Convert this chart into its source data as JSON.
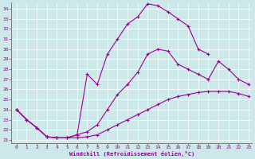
{
  "xlabel": "Windchill (Refroidissement éolien,°C)",
  "bg_color": "#cce8e8",
  "line_color": "#990099",
  "xlim": [
    -0.5,
    23.3
  ],
  "ylim": [
    20.7,
    34.6
  ],
  "xticks": [
    0,
    1,
    2,
    3,
    4,
    5,
    6,
    7,
    8,
    9,
    10,
    11,
    12,
    13,
    14,
    15,
    16,
    17,
    18,
    19,
    20,
    21,
    22,
    23
  ],
  "yticks": [
    21,
    22,
    23,
    24,
    25,
    26,
    27,
    28,
    29,
    30,
    31,
    32,
    33,
    34
  ],
  "curve1_x": [
    0,
    1,
    2,
    3,
    4,
    5,
    6,
    7,
    8,
    9,
    10,
    11,
    12,
    13,
    14,
    15,
    16,
    17,
    18,
    19,
    20,
    21,
    22,
    23
  ],
  "curve1_y": [
    24.0,
    23.0,
    22.2,
    21.3,
    21.2,
    21.2,
    21.2,
    21.3,
    21.5,
    22.0,
    22.5,
    23.0,
    23.5,
    24.0,
    24.5,
    25.0,
    25.3,
    25.5,
    25.7,
    25.8,
    25.8,
    25.8,
    25.6,
    25.3
  ],
  "curve2_x": [
    0,
    1,
    2,
    3,
    4,
    5,
    6,
    7,
    8,
    9,
    10,
    11,
    12,
    13,
    14,
    15,
    16,
    17,
    18,
    19,
    20,
    21,
    22,
    23
  ],
  "curve2_y": [
    24.0,
    23.0,
    22.2,
    21.3,
    21.2,
    21.2,
    21.5,
    27.5,
    26.5,
    29.5,
    31.0,
    32.5,
    33.2,
    34.5,
    34.3,
    33.7,
    33.0,
    32.3,
    30.0,
    29.5,
    null,
    null,
    null,
    null
  ],
  "curve3_x": [
    0,
    1,
    2,
    3,
    4,
    5,
    6,
    7,
    8,
    9,
    10,
    11,
    12,
    13,
    14,
    15,
    16,
    17,
    18,
    19,
    20,
    21,
    22,
    23
  ],
  "curve3_y": [
    24.0,
    23.0,
    22.2,
    21.3,
    21.2,
    21.2,
    21.5,
    21.8,
    22.5,
    24.0,
    25.5,
    26.5,
    27.7,
    29.5,
    30.0,
    29.8,
    28.5,
    28.0,
    27.5,
    27.0,
    28.8,
    28.0,
    27.0,
    26.5
  ]
}
